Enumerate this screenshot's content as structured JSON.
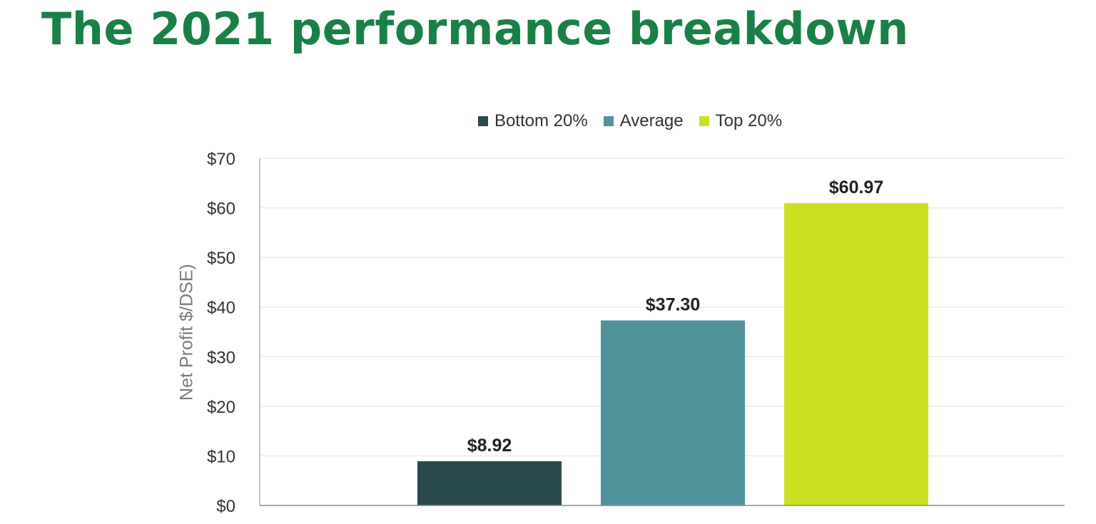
{
  "page": {
    "title": "The 2021 performance breakdown"
  },
  "chart_data": {
    "type": "bar",
    "title": "",
    "xlabel": "",
    "ylabel": "Net Profit $/DSE)",
    "ylim": [
      0,
      70
    ],
    "yticks": [
      0,
      10,
      20,
      30,
      40,
      50,
      60,
      70
    ],
    "ytick_labels": [
      "$0",
      "$10",
      "$20",
      "$30",
      "$40",
      "$50",
      "$60",
      "$70"
    ],
    "grid": true,
    "legend_position": "top-center",
    "series": [
      {
        "name": "Bottom 20%",
        "value": 8.92,
        "label": "$8.92",
        "color": "#2a4a4d"
      },
      {
        "name": "Average",
        "value": 37.3,
        "label": "$37.30",
        "color": "#50939a"
      },
      {
        "name": "Top 20%",
        "value": 60.97,
        "label": "$60.97",
        "color": "#cbe020"
      }
    ]
  },
  "colors": {
    "title": "#1a8048",
    "gridline": "#e3e3e3",
    "axis": "#8a8a8a"
  }
}
